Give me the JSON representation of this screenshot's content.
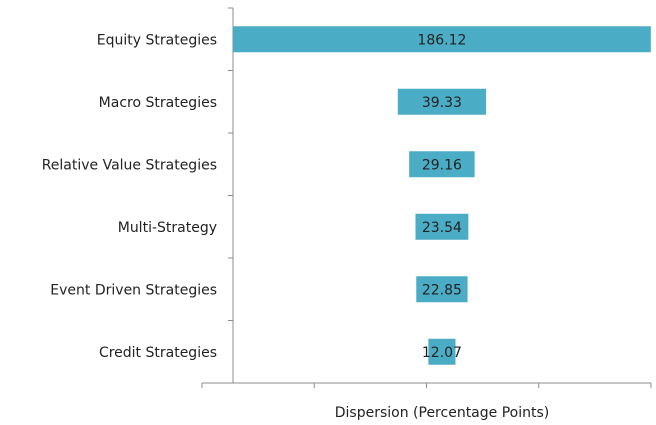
{
  "chart_data": {
    "type": "bar",
    "orientation": "horizontal",
    "x_label": "Dispersion (Percentage Points)",
    "categories": [
      "Equity Strategies",
      "Macro Strategies",
      "Relative Value Strategies",
      "Multi-Strategy",
      "Event Driven Strategies",
      "Credit Strategies"
    ],
    "values": [
      186.12,
      39.33,
      29.16,
      23.54,
      22.85,
      12.07
    ],
    "color": "#4bacc6",
    "xlim": [
      0,
      200
    ]
  }
}
